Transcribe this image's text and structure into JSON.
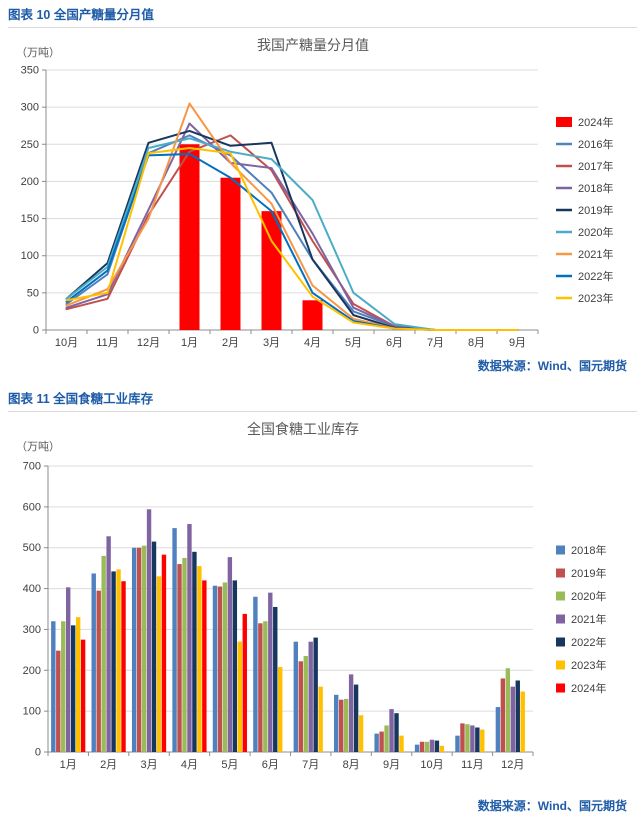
{
  "figures": [
    {
      "header": "图表 10  全国产糖量分月值",
      "source_note": "数据来源：Wind、国元期货"
    },
    {
      "header": "图表 11  全国食糖工业库存",
      "source_note": "数据来源：Wind、国元期货"
    }
  ],
  "colors": {
    "header_blue": "#1F5CA8",
    "grid": "#dcdcdc",
    "axis": "#8c8c8c"
  },
  "chart_data": [
    {
      "type": "combo-bar-line",
      "title": "我国产糖量分月值",
      "unit_label": "（万吨）",
      "xlabel": "",
      "ylabel": "万吨",
      "categories": [
        "10月",
        "11月",
        "12月",
        "1月",
        "2月",
        "3月",
        "4月",
        "5月",
        "6月",
        "7月",
        "8月",
        "9月"
      ],
      "ylim": [
        0,
        350
      ],
      "ytick_step": 50,
      "grid": true,
      "legend_position": "right",
      "bar_series": [
        {
          "name": "2024年",
          "color": "#FF0000",
          "values": [
            null,
            null,
            null,
            250,
            205,
            160,
            40,
            null,
            null,
            null,
            null,
            null
          ]
        }
      ],
      "line_series": [
        {
          "name": "2016年",
          "color": "#4E81BD",
          "values": [
            35,
            75,
            238,
            262,
            235,
            185,
            95,
            25,
            5,
            0,
            0,
            0
          ]
        },
        {
          "name": "2017年",
          "color": "#C0504D",
          "values": [
            28,
            42,
            155,
            240,
            262,
            215,
            120,
            35,
            5,
            0,
            0,
            0
          ]
        },
        {
          "name": "2018年",
          "color": "#8064A2",
          "values": [
            30,
            48,
            162,
            278,
            225,
            218,
            130,
            30,
            5,
            0,
            0,
            0
          ]
        },
        {
          "name": "2019年",
          "color": "#17375E",
          "values": [
            42,
            90,
            252,
            268,
            248,
            252,
            95,
            20,
            3,
            0,
            0,
            0
          ]
        },
        {
          "name": "2020年",
          "color": "#4BACC6",
          "values": [
            42,
            85,
            245,
            258,
            240,
            230,
            175,
            50,
            8,
            0,
            0,
            0
          ]
        },
        {
          "name": "2021年",
          "color": "#F79646",
          "values": [
            33,
            55,
            150,
            305,
            225,
            170,
            60,
            15,
            2,
            0,
            0,
            0
          ]
        },
        {
          "name": "2022年",
          "color": "#0070C0",
          "values": [
            38,
            80,
            235,
            237,
            205,
            160,
            50,
            12,
            2,
            0,
            0,
            0
          ]
        },
        {
          "name": "2023年",
          "color": "#FFC000",
          "values": [
            40,
            50,
            238,
            245,
            238,
            120,
            45,
            10,
            2,
            0,
            0,
            0
          ]
        }
      ]
    },
    {
      "type": "bar",
      "title": "全国食糖工业库存",
      "unit_label": "（万吨）",
      "xlabel": "",
      "ylabel": "万吨",
      "categories": [
        "1月",
        "2月",
        "3月",
        "4月",
        "5月",
        "6月",
        "7月",
        "8月",
        "9月",
        "10月",
        "11月",
        "12月"
      ],
      "ylim": [
        0,
        700
      ],
      "ytick_step": 100,
      "grid": true,
      "legend_position": "right",
      "bar_series": [
        {
          "name": "2018年",
          "color": "#4E81BD",
          "values": [
            320,
            437,
            500,
            548,
            407,
            380,
            270,
            140,
            45,
            18,
            40,
            110
          ]
        },
        {
          "name": "2019年",
          "color": "#C0504D",
          "values": [
            248,
            395,
            500,
            460,
            405,
            315,
            222,
            128,
            50,
            25,
            70,
            180
          ]
        },
        {
          "name": "2020年",
          "color": "#9BBB59",
          "values": [
            320,
            480,
            505,
            475,
            415,
            320,
            235,
            130,
            65,
            25,
            68,
            205
          ]
        },
        {
          "name": "2021年",
          "color": "#8064A2",
          "values": [
            403,
            528,
            594,
            558,
            477,
            390,
            270,
            190,
            105,
            30,
            65,
            160
          ]
        },
        {
          "name": "2022年",
          "color": "#17375E",
          "values": [
            310,
            442,
            515,
            490,
            420,
            355,
            280,
            165,
            95,
            28,
            60,
            175
          ]
        },
        {
          "name": "2023年",
          "color": "#FFC000",
          "values": [
            330,
            447,
            430,
            455,
            270,
            208,
            160,
            90,
            40,
            15,
            55,
            148
          ]
        },
        {
          "name": "2024年",
          "color": "#FF0000",
          "values": [
            275,
            418,
            483,
            420,
            338,
            null,
            null,
            null,
            null,
            null,
            null,
            null
          ]
        }
      ]
    }
  ]
}
